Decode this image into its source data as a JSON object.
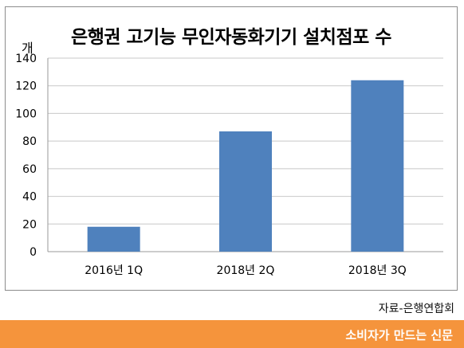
{
  "chart_data": {
    "type": "bar",
    "title": "은행권 고기능 무인자동화기기 설치점포 수",
    "unit": "개",
    "categories": [
      "2016년 1Q",
      "2018년 2Q",
      "2018년 3Q"
    ],
    "values": [
      18,
      87,
      124
    ],
    "ylim": [
      0,
      140
    ],
    "yticks": [
      0,
      20,
      40,
      60,
      80,
      100,
      120,
      140
    ],
    "grid": true,
    "bar_color": "#4f81bd"
  },
  "source": "자료-은행연합회",
  "footer": {
    "label": "소비자가 만드는 신문",
    "color": "#f5943c"
  }
}
